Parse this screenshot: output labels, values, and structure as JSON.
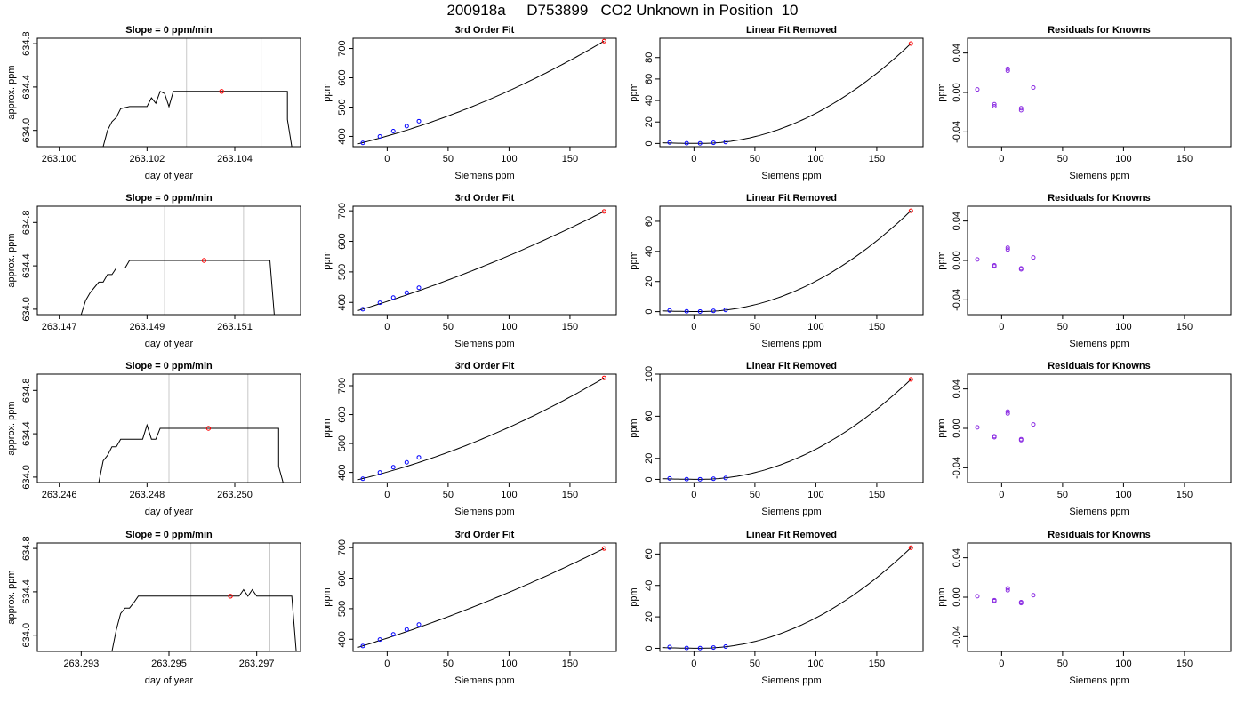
{
  "page_title": "200918a     D753899   CO2 Unknown in Position  10",
  "colors": {
    "line": "#000000",
    "grid": "#c8c8c8",
    "unknown": "#ff0000",
    "known": "#0000ff",
    "residual": "#8a2be2"
  },
  "chart_data": [
    {
      "type": "line",
      "row": 0,
      "kind": "timeseries",
      "title": "Slope =  0  ppm/min",
      "xlabel": "day of year",
      "ylabel": "approx. ppm",
      "xlim": [
        263.0995,
        263.1055
      ],
      "ylim": [
        633.85,
        634.85
      ],
      "xticks": [
        263.1,
        263.102,
        263.104
      ],
      "xticklabels": [
        "263.100",
        "263.102",
        "263.104"
      ],
      "yticks": [
        634.0,
        634.4,
        634.8
      ],
      "yticklabels": [
        "634.0",
        "634.4",
        "634.8"
      ],
      "vlines": [
        263.1029,
        263.1046
      ],
      "series": [
        {
          "x": [
            263.101,
            263.1011,
            263.1012,
            263.1013,
            263.1014,
            263.1016,
            263.102,
            263.1021,
            263.1022,
            263.1023,
            263.1024,
            263.1025,
            263.1026,
            263.1028,
            263.103,
            263.104,
            263.1052,
            263.1052,
            263.1053
          ],
          "y": [
            633.85,
            634.0,
            634.08,
            634.12,
            634.2,
            634.22,
            634.22,
            634.3,
            634.25,
            634.36,
            634.34,
            634.22,
            634.36,
            634.36,
            634.36,
            634.36,
            634.36,
            634.1,
            633.85
          ]
        }
      ],
      "marker": {
        "x": 263.1037,
        "y": 634.36
      }
    },
    {
      "type": "scatter",
      "row": 0,
      "kind": "fit",
      "title": "3rd Order Fit",
      "xlabel": "Siemens ppm",
      "ylabel": "ppm",
      "xlim": [
        -28,
        188
      ],
      "ylim": [
        365,
        735
      ],
      "xticks": [
        0,
        50,
        100,
        150
      ],
      "yticks": [
        400,
        500,
        600,
        700
      ],
      "curve": "cubic",
      "coef": [
        407.6,
        1.51,
        0.0035,
        0.0
      ],
      "knowns": {
        "x": [
          -20,
          -6,
          5,
          16,
          26
        ],
        "y": [
          378,
          400,
          418,
          435,
          452
        ]
      },
      "unknown": {
        "x": 178,
        "y": 725
      }
    },
    {
      "type": "scatter",
      "row": 0,
      "kind": "linres",
      "title": "Linear Fit Removed",
      "xlabel": "Siemens ppm",
      "ylabel": "ppm",
      "xlim": [
        -28,
        188
      ],
      "ylim": [
        -3,
        98
      ],
      "xticks": [
        0,
        50,
        100,
        150
      ],
      "yticks": [
        0,
        20,
        40,
        60,
        80
      ],
      "knowns": {
        "x": [
          -20,
          -6,
          5,
          16,
          26
        ],
        "y": [
          0.9,
          0.2,
          0.1,
          0.6,
          1.3
        ]
      },
      "unknown": {
        "x": 178,
        "y": 93
      }
    },
    {
      "type": "scatter",
      "row": 0,
      "kind": "resid",
      "title": "Residuals for Knowns",
      "xlabel": "Siemens ppm",
      "ylabel": "ppm",
      "xlim": [
        -28,
        188
      ],
      "ylim": [
        -0.055,
        0.055
      ],
      "xticks": [
        0,
        50,
        100,
        150
      ],
      "yticks": [
        -0.04,
        0.0,
        0.04
      ],
      "yticklabels": [
        "-0.04",
        "0.00",
        "0.04"
      ],
      "knowns": {
        "x": [
          -20,
          -6,
          -6,
          5,
          5,
          16,
          16,
          26
        ],
        "y": [
          0.003,
          -0.012,
          -0.014,
          0.022,
          0.024,
          -0.016,
          -0.018,
          0.005
        ]
      }
    },
    {
      "type": "line",
      "row": 1,
      "kind": "timeseries",
      "title": "Slope =  0  ppm/min",
      "xlabel": "day of year",
      "ylabel": "approx. ppm",
      "xlim": [
        263.1465,
        263.1525
      ],
      "ylim": [
        633.95,
        634.95
      ],
      "xticks": [
        263.147,
        263.149,
        263.151
      ],
      "xticklabels": [
        "263.147",
        "263.149",
        "263.151"
      ],
      "yticks": [
        634.0,
        634.4,
        634.8
      ],
      "yticklabels": [
        "634.0",
        "634.4",
        "634.8"
      ],
      "vlines": [
        263.1494,
        263.1512
      ],
      "series": [
        {
          "x": [
            263.1475,
            263.1476,
            263.1477,
            263.1478,
            263.1479,
            263.148,
            263.1481,
            263.1482,
            263.1483,
            263.1485,
            263.1486,
            263.1487,
            263.1495,
            263.151,
            263.1518,
            263.1519
          ],
          "y": [
            633.95,
            634.08,
            634.15,
            634.2,
            634.25,
            634.25,
            634.32,
            634.32,
            634.38,
            634.38,
            634.45,
            634.45,
            634.45,
            634.45,
            634.45,
            633.95
          ]
        }
      ],
      "marker": {
        "x": 263.1503,
        "y": 634.45
      }
    },
    {
      "type": "scatter",
      "row": 1,
      "kind": "fit",
      "title": "3rd Order Fit",
      "xlabel": "Siemens ppm",
      "ylabel": "ppm",
      "xlim": [
        -28,
        188
      ],
      "ylim": [
        360,
        715
      ],
      "xticks": [
        0,
        50,
        100,
        150
      ],
      "yticks": [
        400,
        500,
        600,
        700
      ],
      "curve": "cubic",
      "coef": [
        407.6,
        1.51,
        0.002,
        0.0
      ],
      "knowns": {
        "x": [
          -20,
          -6,
          5,
          16,
          26
        ],
        "y": [
          378,
          399,
          416,
          432,
          448
        ]
      },
      "unknown": {
        "x": 178,
        "y": 698
      }
    },
    {
      "type": "scatter",
      "row": 1,
      "kind": "linres",
      "title": "Linear Fit Removed",
      "xlabel": "Siemens ppm",
      "ylabel": "ppm",
      "xlim": [
        -28,
        188
      ],
      "ylim": [
        -2,
        70
      ],
      "xticks": [
        0,
        50,
        100,
        150
      ],
      "yticks": [
        0,
        20,
        40,
        60
      ],
      "knowns": {
        "x": [
          -20,
          -6,
          5,
          16,
          26
        ],
        "y": [
          0.8,
          0.2,
          0.1,
          0.5,
          1.1
        ]
      },
      "unknown": {
        "x": 178,
        "y": 67
      }
    },
    {
      "type": "scatter",
      "row": 1,
      "kind": "resid",
      "title": "Residuals for Knowns",
      "xlabel": "Siemens ppm",
      "ylabel": "ppm",
      "xlim": [
        -28,
        188
      ],
      "ylim": [
        -0.055,
        0.055
      ],
      "xticks": [
        0,
        50,
        100,
        150
      ],
      "yticks": [
        -0.04,
        0.0,
        0.04
      ],
      "yticklabels": [
        "-0.04",
        "0.00",
        "0.04"
      ],
      "knowns": {
        "x": [
          -20,
          -6,
          -6,
          5,
          5,
          16,
          16,
          26
        ],
        "y": [
          0.001,
          -0.005,
          -0.006,
          0.011,
          0.013,
          -0.008,
          -0.009,
          0.003
        ]
      }
    },
    {
      "type": "line",
      "row": 2,
      "kind": "timeseries",
      "title": "Slope =  0  ppm/min",
      "xlabel": "day of year",
      "ylabel": "approx. ppm",
      "xlim": [
        263.2455,
        263.2515
      ],
      "ylim": [
        633.95,
        634.95
      ],
      "xticks": [
        263.246,
        263.248,
        263.25
      ],
      "xticklabels": [
        "263.246",
        "263.248",
        "263.250"
      ],
      "yticks": [
        634.0,
        634.4,
        634.8
      ],
      "yticklabels": [
        "634.0",
        "634.4",
        "634.8"
      ],
      "vlines": [
        263.2485,
        263.2503
      ],
      "series": [
        {
          "x": [
            263.2469,
            263.247,
            263.2471,
            263.2472,
            263.2473,
            263.2474,
            263.2475,
            263.2479,
            263.248,
            263.2481,
            263.2482,
            263.2483,
            263.2484,
            263.2485,
            263.25,
            263.251,
            263.251,
            263.2511
          ],
          "y": [
            633.95,
            634.15,
            634.2,
            634.28,
            634.28,
            634.35,
            634.35,
            634.35,
            634.48,
            634.35,
            634.35,
            634.45,
            634.45,
            634.45,
            634.45,
            634.45,
            634.1,
            633.95
          ]
        }
      ],
      "marker": {
        "x": 263.2494,
        "y": 634.45
      }
    },
    {
      "type": "scatter",
      "row": 2,
      "kind": "fit",
      "title": "3rd Order Fit",
      "xlabel": "Siemens ppm",
      "ylabel": "ppm",
      "xlim": [
        -28,
        188
      ],
      "ylim": [
        365,
        740
      ],
      "xticks": [
        0,
        50,
        100,
        150
      ],
      "yticks": [
        400,
        500,
        600,
        700
      ],
      "curve": "cubic",
      "coef": [
        407.6,
        1.51,
        0.0036,
        0.0
      ],
      "knowns": {
        "x": [
          -20,
          -6,
          5,
          16,
          26
        ],
        "y": [
          378,
          400,
          418,
          435,
          452
        ]
      },
      "unknown": {
        "x": 178,
        "y": 727
      }
    },
    {
      "type": "scatter",
      "row": 2,
      "kind": "linres",
      "title": "Linear Fit Removed",
      "xlabel": "Siemens ppm",
      "ylabel": "ppm",
      "xlim": [
        -28,
        188
      ],
      "ylim": [
        -3,
        100
      ],
      "xticks": [
        0,
        50,
        100,
        150
      ],
      "yticks": [
        0,
        20,
        60,
        100
      ],
      "knowns": {
        "x": [
          -20,
          -6,
          5,
          16,
          26
        ],
        "y": [
          0.9,
          0.2,
          0.1,
          0.6,
          1.3
        ]
      },
      "unknown": {
        "x": 178,
        "y": 95
      }
    },
    {
      "type": "scatter",
      "row": 2,
      "kind": "resid",
      "title": "Residuals for Knowns",
      "xlabel": "Siemens ppm",
      "ylabel": "ppm",
      "xlim": [
        -28,
        188
      ],
      "ylim": [
        -0.055,
        0.055
      ],
      "xticks": [
        0,
        50,
        100,
        150
      ],
      "yticks": [
        -0.04,
        0.0,
        0.04
      ],
      "yticklabels": [
        "-0.04",
        "0.00",
        "0.04"
      ],
      "knowns": {
        "x": [
          -20,
          -6,
          -6,
          5,
          5,
          16,
          16,
          26
        ],
        "y": [
          0.001,
          -0.008,
          -0.009,
          0.015,
          0.017,
          -0.011,
          -0.012,
          0.004
        ]
      }
    },
    {
      "type": "line",
      "row": 3,
      "kind": "timeseries",
      "title": "Slope =  0  ppm/min",
      "xlabel": "day of year",
      "ylabel": "approx. ppm",
      "xlim": [
        263.292,
        263.298
      ],
      "ylim": [
        633.85,
        634.85
      ],
      "xticks": [
        263.293,
        263.295,
        263.297
      ],
      "xticklabels": [
        "263.293",
        "263.295",
        "263.297"
      ],
      "yticks": [
        634.0,
        634.4,
        634.8
      ],
      "yticklabels": [
        "634.0",
        "634.4",
        "634.8"
      ],
      "vlines": [
        263.2955,
        263.2973
      ],
      "series": [
        {
          "x": [
            263.2937,
            263.2938,
            263.2939,
            263.294,
            263.2941,
            263.2942,
            263.2943,
            263.2944,
            263.295,
            263.2966,
            263.2967,
            263.2968,
            263.2969,
            263.297,
            263.2978,
            263.2979
          ],
          "y": [
            633.85,
            634.05,
            634.2,
            634.25,
            634.25,
            634.3,
            634.36,
            634.36,
            634.36,
            634.36,
            634.42,
            634.36,
            634.42,
            634.36,
            634.36,
            633.85
          ]
        }
      ],
      "marker": {
        "x": 263.2964,
        "y": 634.36
      }
    },
    {
      "type": "scatter",
      "row": 3,
      "kind": "fit",
      "title": "3rd Order Fit",
      "xlabel": "Siemens ppm",
      "ylabel": "ppm",
      "xlim": [
        -28,
        188
      ],
      "ylim": [
        360,
        715
      ],
      "xticks": [
        0,
        50,
        100,
        150
      ],
      "yticks": [
        400,
        500,
        600,
        700
      ],
      "curve": "cubic",
      "coef": [
        407.6,
        1.51,
        0.0019,
        0.0
      ],
      "knowns": {
        "x": [
          -20,
          -6,
          5,
          16,
          26
        ],
        "y": [
          378,
          399,
          416,
          432,
          448
        ]
      },
      "unknown": {
        "x": 178,
        "y": 697
      }
    },
    {
      "type": "scatter",
      "row": 3,
      "kind": "linres",
      "title": "Linear Fit Removed",
      "xlabel": "Siemens ppm",
      "ylabel": "ppm",
      "xlim": [
        -28,
        188
      ],
      "ylim": [
        -2,
        67
      ],
      "xticks": [
        0,
        50,
        100,
        150
      ],
      "yticks": [
        0,
        20,
        40,
        60
      ],
      "knowns": {
        "x": [
          -20,
          -6,
          5,
          16,
          26
        ],
        "y": [
          0.8,
          0.2,
          0.1,
          0.5,
          1.1
        ]
      },
      "unknown": {
        "x": 178,
        "y": 64
      }
    },
    {
      "type": "scatter",
      "row": 3,
      "kind": "resid",
      "title": "Residuals for Knowns",
      "xlabel": "Siemens ppm",
      "ylabel": "ppm",
      "xlim": [
        -28,
        188
      ],
      "ylim": [
        -0.055,
        0.055
      ],
      "xticks": [
        0,
        50,
        100,
        150
      ],
      "yticks": [
        -0.04,
        0.0,
        0.04
      ],
      "yticklabels": [
        "-0.04",
        "0.00",
        "0.04"
      ],
      "knowns": {
        "x": [
          -20,
          -6,
          -6,
          5,
          5,
          16,
          16,
          26
        ],
        "y": [
          0.001,
          -0.003,
          -0.004,
          0.007,
          0.009,
          -0.005,
          -0.006,
          0.002
        ]
      }
    }
  ]
}
